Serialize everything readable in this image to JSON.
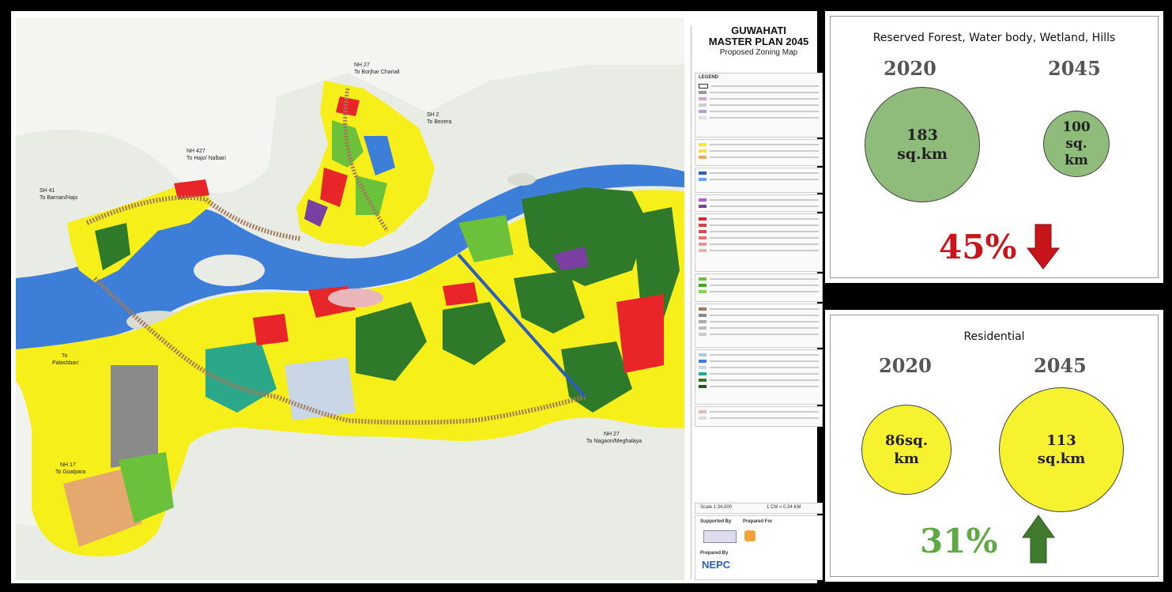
{
  "map": {
    "title_line1": "GUWAHATI",
    "title_line2": "MASTER PLAN 2045",
    "subtitle": "Proposed Zoning Map",
    "legend_header": "LEGEND",
    "scale": "Scale 1:34,000",
    "scale_unit": "1 CM = 0.34 KM",
    "supported_by": "Supported By",
    "prepared_for": "Prepared For",
    "prepared_by": "Prepared By",
    "prepared_by_logo": "NEPC",
    "road_labels": {
      "nh27_north": "NH 27",
      "to_borjhar": "To Borjhar Chariali",
      "sh2": "SH 2",
      "to_bezera": "To Bezera",
      "nh427": "NH 427",
      "to_hajo": "To Hajo/ Nalbari",
      "sh41": "SH 41",
      "to_barnan": "To Barnan/Hajo",
      "to": "To",
      "palashbari": "Palashbari",
      "nh17": "NH 17",
      "to_goalpara": "To Goalpara",
      "nh27_east": "NH 27",
      "to_nagaon": "To Nagaon/Meghalaya"
    },
    "colors": {
      "river": "#3d7ed8",
      "residential": "#f7ef1a",
      "forest": "#2f7a2a",
      "green": "#6bc13a",
      "commercial": "#e8262a",
      "industrial": "#7a3fa0",
      "hills": "#e9ece5"
    }
  },
  "forest_card": {
    "title": "Reserved Forest, Water body, Wetland, Hills",
    "year_a": "2020",
    "year_b": "2045",
    "value_a_line1": "183",
    "value_a_line2": "sq.km",
    "value_b_line1": "100",
    "value_b_line2": "sq.",
    "value_b_line3": "km",
    "change": "45%",
    "direction": "down",
    "circle_color": "#8fbc7a",
    "change_color": "#c8141b"
  },
  "residential_card": {
    "title": "Residential",
    "year_a": "2020",
    "year_b": "2045",
    "value_a_line1": "86sq.",
    "value_a_line2": "km",
    "value_b_line1": "113",
    "value_b_line2": "sq.km",
    "change": "31%",
    "direction": "up",
    "circle_color": "#f7f230",
    "change_color": "#5fa843",
    "arrow_color": "#3f7a2e"
  }
}
